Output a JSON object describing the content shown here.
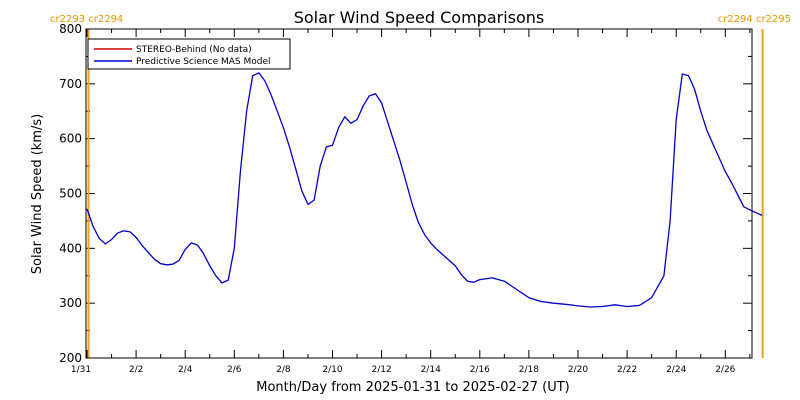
{
  "chart_data": {
    "type": "line",
    "title": "Solar Wind Speed Comparisons",
    "xlabel": "Month/Day from 2025-01-31 to 2025-02-27 (UT)",
    "ylabel": "Solar Wind Speed (km/s)",
    "xlim": [
      0,
      27.8
    ],
    "ylim": [
      200,
      800
    ],
    "yticks": [
      200,
      300,
      400,
      500,
      600,
      700,
      800
    ],
    "xtick_labels": [
      {
        "x": 0,
        "label": "1/31"
      },
      {
        "x": 2,
        "label": "2/2"
      },
      {
        "x": 4,
        "label": "2/4"
      },
      {
        "x": 6,
        "label": "2/6"
      },
      {
        "x": 8,
        "label": "2/8"
      },
      {
        "x": 10,
        "label": "2/10"
      },
      {
        "x": 12,
        "label": "2/12"
      },
      {
        "x": 14,
        "label": "2/14"
      },
      {
        "x": 16,
        "label": "2/16"
      },
      {
        "x": 18,
        "label": "2/18"
      },
      {
        "x": 20,
        "label": "2/20"
      },
      {
        "x": 22,
        "label": "2/22"
      },
      {
        "x": 24,
        "label": "2/24"
      },
      {
        "x": 26,
        "label": "2/26"
      }
    ],
    "legend": {
      "placement": "top-left",
      "entries": [
        {
          "label": "STEREO-Behind (No data)",
          "color": "#cc0000"
        },
        {
          "label": "Predictive Science MAS Model",
          "color": "#0000cc"
        }
      ]
    },
    "carrington_left": [
      "cr2293",
      "cr2294"
    ],
    "carrington_right": [
      "cr2294",
      "cr2295"
    ],
    "carrington_line_color": "#f0a020",
    "carrington_lines_x": [
      0.06,
      27.52
    ],
    "series": [
      {
        "name": "Predictive Science MAS Model",
        "color": "#0000cc",
        "x": [
          0.0,
          0.25,
          0.5,
          0.75,
          1.0,
          1.25,
          1.5,
          1.75,
          2.0,
          2.25,
          2.5,
          2.75,
          3.0,
          3.25,
          3.5,
          3.75,
          4.0,
          4.25,
          4.5,
          4.75,
          5.0,
          5.25,
          5.5,
          5.75,
          6.0,
          6.25,
          6.5,
          6.75,
          7.0,
          7.25,
          7.5,
          7.75,
          8.0,
          8.25,
          8.5,
          8.75,
          9.0,
          9.25,
          9.5,
          9.75,
          10.0,
          10.25,
          10.5,
          10.75,
          11.0,
          11.25,
          11.5,
          11.75,
          12.0,
          12.25,
          12.5,
          12.75,
          13.0,
          13.25,
          13.5,
          13.75,
          14.0,
          14.25,
          14.5,
          14.75,
          15.0,
          15.25,
          15.5,
          15.75,
          16.0,
          16.5,
          17.0,
          17.5,
          18.0,
          18.5,
          19.0,
          19.5,
          20.0,
          20.5,
          21.0,
          21.5,
          22.0,
          22.5,
          23.0,
          23.5,
          23.75,
          24.0,
          24.25,
          24.5,
          24.75,
          25.0,
          25.25,
          25.5,
          25.75,
          26.0,
          26.25,
          26.5,
          26.75,
          27.0,
          27.25,
          27.5
        ],
        "y": [
          472,
          440,
          418,
          408,
          416,
          428,
          432,
          430,
          420,
          405,
          392,
          380,
          372,
          370,
          371,
          378,
          398,
          410,
          406,
          390,
          368,
          350,
          337,
          342,
          400,
          540,
          650,
          715,
          720,
          705,
          680,
          650,
          620,
          585,
          545,
          505,
          480,
          488,
          550,
          585,
          588,
          620,
          640,
          628,
          635,
          660,
          678,
          682,
          665,
          630,
          595,
          560,
          520,
          480,
          447,
          425,
          410,
          398,
          388,
          378,
          368,
          352,
          340,
          338,
          343,
          346,
          340,
          325,
          310,
          303,
          300,
          298,
          295,
          293,
          294,
          297,
          294,
          296,
          310,
          350,
          450,
          635,
          718,
          715,
          690,
          650,
          615,
          590,
          565,
          540,
          520,
          498,
          476,
          470,
          465,
          460
        ],
        "y_stop_index": 95
      }
    ]
  }
}
